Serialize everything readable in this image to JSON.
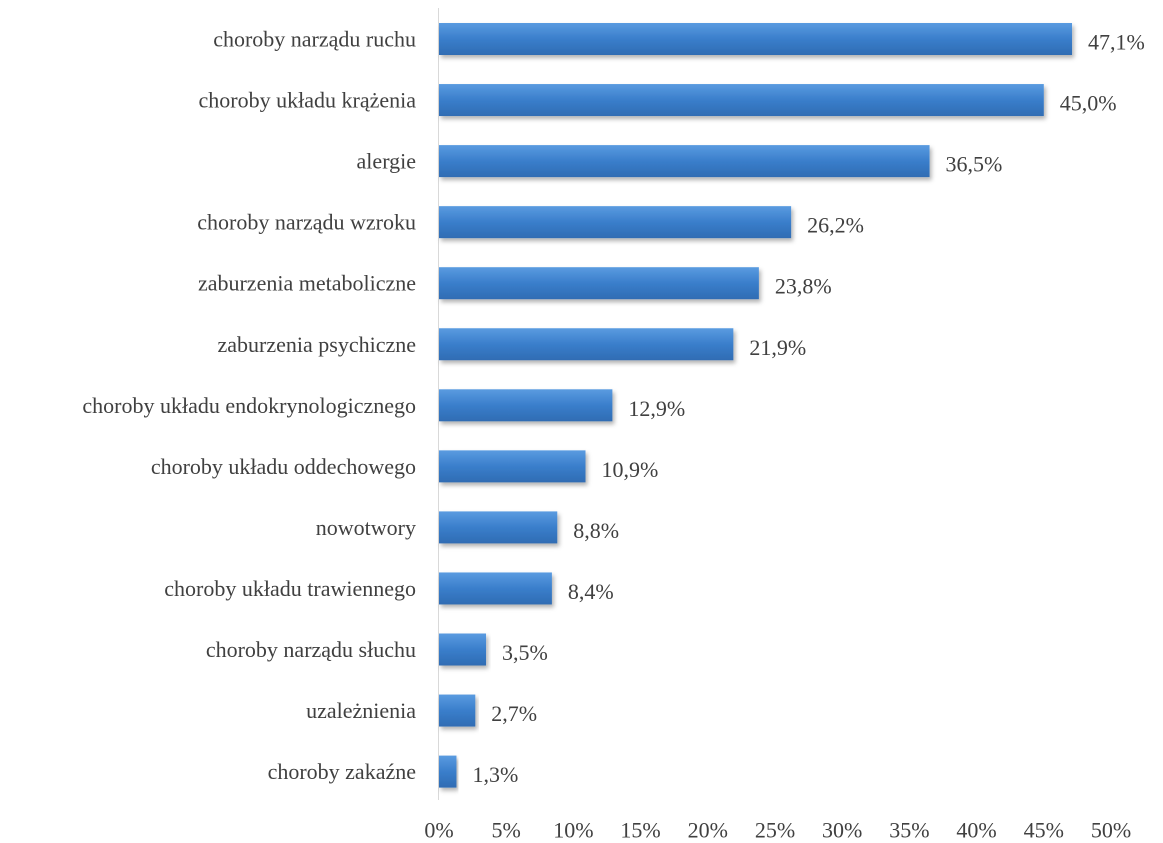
{
  "chart_data": {
    "type": "bar",
    "orientation": "horizontal",
    "title": "",
    "xlabel": "",
    "ylabel": "",
    "categories": [
      "choroby narządu ruchu",
      "choroby układu krążenia",
      "alergie",
      "choroby narządu wzroku",
      "zaburzenia metaboliczne",
      "zaburzenia psychiczne",
      "choroby układu endokrynologicznego",
      "choroby układu oddechowego",
      "nowotwory",
      "choroby układu trawiennego",
      "choroby narządu słuchu",
      "uzależnienia",
      "choroby zakaźne"
    ],
    "values": [
      47.1,
      45.0,
      36.5,
      26.2,
      23.8,
      21.9,
      12.9,
      10.9,
      8.8,
      8.4,
      3.5,
      2.7,
      1.3
    ],
    "value_labels": [
      "47,1%",
      "45,0%",
      "36,5%",
      "26,2%",
      "23,8%",
      "21,9%",
      "12,9%",
      "10,9%",
      "8,8%",
      "8,4%",
      "3,5%",
      "2,7%",
      "1,3%"
    ],
    "xlim": [
      0,
      50
    ],
    "tick_values": [
      0,
      5,
      10,
      15,
      20,
      25,
      30,
      35,
      40,
      45,
      50
    ],
    "tick_labels": [
      "0%",
      "5%",
      "10%",
      "15%",
      "20%",
      "25%",
      "30%",
      "35%",
      "40%",
      "45%",
      "50%"
    ],
    "grid": false,
    "legend": "none",
    "bar_color": "#3a7ecb",
    "axis_color": "#d9d9d9"
  }
}
